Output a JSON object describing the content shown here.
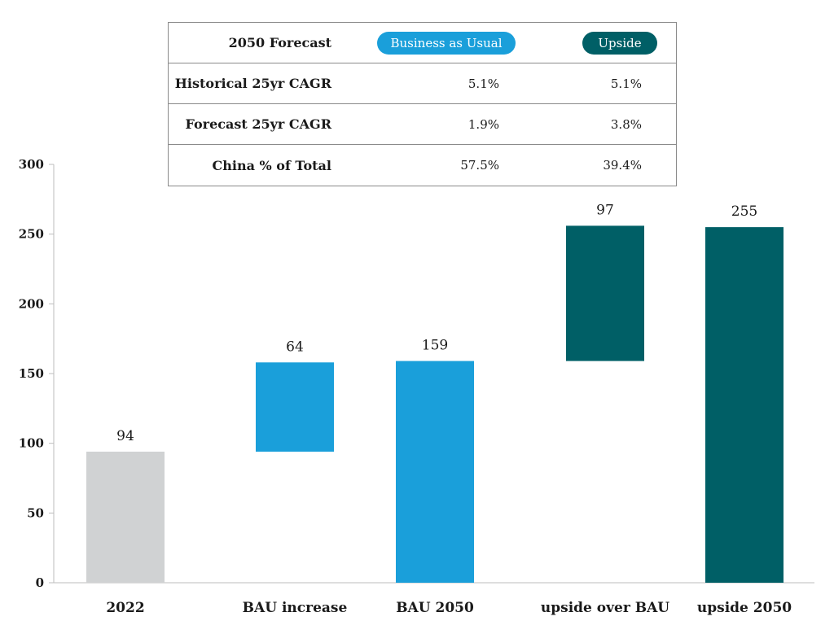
{
  "table": {
    "header": {
      "label": "2050 Forecast",
      "col1": "Business as Usual",
      "col2": "Upside"
    },
    "rows": [
      {
        "label": "Historical 25yr CAGR",
        "bau": "5.1%",
        "upside": "5.1%"
      },
      {
        "label": "Forecast 25yr CAGR",
        "bau": "1.9%",
        "upside": "3.8%"
      },
      {
        "label": "China % of Total",
        "bau": "57.5%",
        "upside": "39.4%"
      }
    ],
    "colors": {
      "bau": "#1a9fda",
      "upside": "#005f66"
    }
  },
  "chart_data": {
    "type": "bar",
    "subtype": "waterfall",
    "categories": [
      "2022",
      "BAU increase",
      "BAU 2050",
      "upside over BAU",
      "upside 2050"
    ],
    "bars": [
      {
        "category": "2022",
        "base": 0,
        "value": 94,
        "label": "94",
        "color": "#d0d2d3"
      },
      {
        "category": "BAU increase",
        "base": 94,
        "value": 64,
        "label": "64",
        "color": "#1a9fda"
      },
      {
        "category": "BAU 2050",
        "base": 0,
        "value": 159,
        "label": "159",
        "color": "#1a9fda"
      },
      {
        "category": "upside over BAU",
        "base": 159,
        "value": 97,
        "label": "97",
        "color": "#005f66"
      },
      {
        "category": "upside 2050",
        "base": 0,
        "value": 255,
        "label": "255",
        "color": "#005f66"
      }
    ],
    "ylim": [
      0,
      300
    ],
    "yticks": [
      "0",
      "50",
      "100",
      "150",
      "200",
      "250",
      "300"
    ],
    "grid": false
  }
}
